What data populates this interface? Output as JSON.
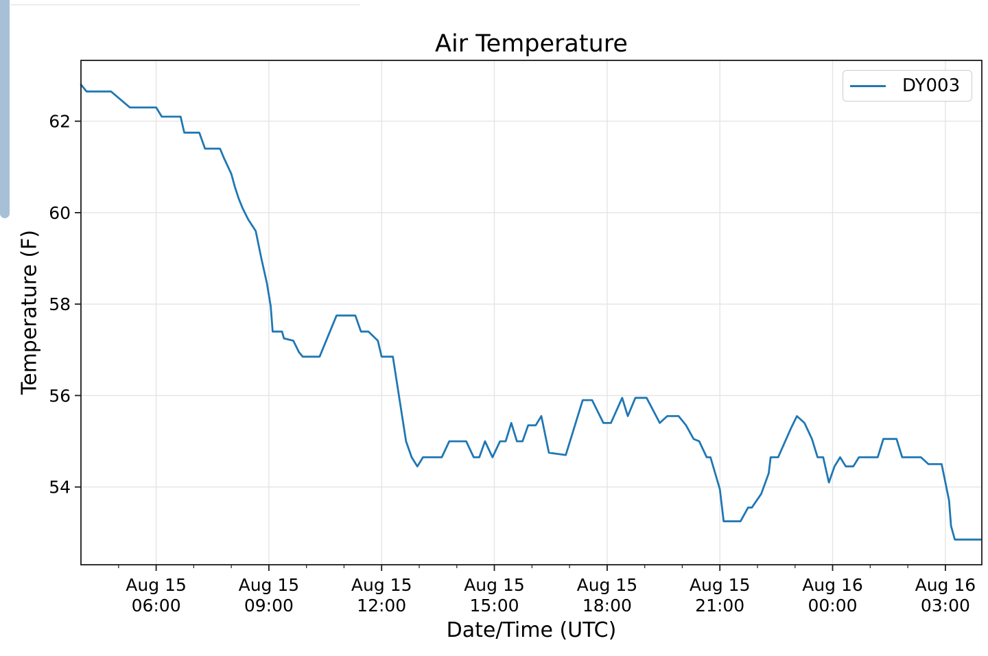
{
  "page": {
    "background": "#ffffff",
    "scrollbar_color": "#a7c0d8",
    "divider_color": "#ededed"
  },
  "chart_data": {
    "type": "line",
    "title": "Air Temperature",
    "xlabel": "Date/Time (UTC)",
    "ylabel": "Temperature (F)",
    "grid": true,
    "grid_color": "#e4e4e4",
    "line_color": "#1f77b4",
    "spine_color": "#1a1a1a",
    "legend_position": "upper right",
    "x_unit": "hours since Aug 15 00:00 UTC",
    "xlim": [
      4.0,
      27.97
    ],
    "ylim": [
      52.3,
      63.33
    ],
    "y_ticks": [
      54,
      56,
      58,
      60,
      62
    ],
    "x_major_ticks": [
      {
        "t": 6,
        "line1": "Aug 15",
        "line2": "06:00"
      },
      {
        "t": 9,
        "line1": "Aug 15",
        "line2": "09:00"
      },
      {
        "t": 12,
        "line1": "Aug 15",
        "line2": "12:00"
      },
      {
        "t": 15,
        "line1": "Aug 15",
        "line2": "15:00"
      },
      {
        "t": 18,
        "line1": "Aug 15",
        "line2": "18:00"
      },
      {
        "t": 21,
        "line1": "Aug 15",
        "line2": "21:00"
      },
      {
        "t": 24,
        "line1": "Aug 16",
        "line2": "00:00"
      },
      {
        "t": 27,
        "line1": "Aug 16",
        "line2": "03:00"
      }
    ],
    "x_minor_ticks": [
      5,
      7,
      8,
      10,
      11,
      13,
      14,
      16,
      17,
      19,
      20,
      22,
      23,
      25,
      26
    ],
    "series": [
      {
        "name": "DY003",
        "points": [
          [
            4.0,
            62.8
          ],
          [
            4.15,
            62.65
          ],
          [
            4.8,
            62.65
          ],
          [
            5.3,
            62.3
          ],
          [
            6.0,
            62.3
          ],
          [
            6.15,
            62.1
          ],
          [
            6.65,
            62.1
          ],
          [
            6.75,
            61.75
          ],
          [
            7.15,
            61.75
          ],
          [
            7.3,
            61.4
          ],
          [
            7.7,
            61.4
          ],
          [
            7.8,
            61.2
          ],
          [
            8.0,
            60.85
          ],
          [
            8.1,
            60.55
          ],
          [
            8.2,
            60.3
          ],
          [
            8.3,
            60.1
          ],
          [
            8.45,
            59.85
          ],
          [
            8.65,
            59.6
          ],
          [
            8.8,
            59.0
          ],
          [
            8.95,
            58.45
          ],
          [
            9.05,
            57.95
          ],
          [
            9.1,
            57.4
          ],
          [
            9.35,
            57.4
          ],
          [
            9.4,
            57.25
          ],
          [
            9.65,
            57.2
          ],
          [
            9.8,
            56.95
          ],
          [
            9.9,
            56.85
          ],
          [
            10.35,
            56.85
          ],
          [
            10.8,
            57.75
          ],
          [
            11.3,
            57.75
          ],
          [
            11.45,
            57.4
          ],
          [
            11.65,
            57.4
          ],
          [
            11.9,
            57.2
          ],
          [
            12.0,
            56.85
          ],
          [
            12.3,
            56.85
          ],
          [
            12.65,
            55.0
          ],
          [
            12.8,
            54.65
          ],
          [
            12.95,
            54.45
          ],
          [
            13.1,
            54.65
          ],
          [
            13.6,
            54.65
          ],
          [
            13.8,
            55.0
          ],
          [
            14.25,
            55.0
          ],
          [
            14.45,
            54.65
          ],
          [
            14.6,
            54.65
          ],
          [
            14.75,
            55.0
          ],
          [
            14.95,
            54.65
          ],
          [
            15.15,
            55.0
          ],
          [
            15.3,
            55.0
          ],
          [
            15.45,
            55.4
          ],
          [
            15.6,
            55.0
          ],
          [
            15.75,
            55.0
          ],
          [
            15.9,
            55.35
          ],
          [
            16.1,
            55.35
          ],
          [
            16.25,
            55.55
          ],
          [
            16.45,
            54.75
          ],
          [
            16.9,
            54.7
          ],
          [
            17.35,
            55.9
          ],
          [
            17.6,
            55.9
          ],
          [
            17.9,
            55.4
          ],
          [
            18.1,
            55.4
          ],
          [
            18.4,
            55.95
          ],
          [
            18.55,
            55.55
          ],
          [
            18.75,
            55.95
          ],
          [
            19.05,
            55.95
          ],
          [
            19.4,
            55.4
          ],
          [
            19.6,
            55.55
          ],
          [
            19.9,
            55.55
          ],
          [
            20.1,
            55.35
          ],
          [
            20.3,
            55.05
          ],
          [
            20.45,
            55.0
          ],
          [
            20.65,
            54.65
          ],
          [
            20.75,
            54.65
          ],
          [
            21.0,
            53.95
          ],
          [
            21.1,
            53.25
          ],
          [
            21.55,
            53.25
          ],
          [
            21.75,
            53.55
          ],
          [
            21.85,
            53.55
          ],
          [
            22.1,
            53.85
          ],
          [
            22.3,
            54.3
          ],
          [
            22.35,
            54.65
          ],
          [
            22.55,
            54.65
          ],
          [
            22.9,
            55.3
          ],
          [
            23.05,
            55.55
          ],
          [
            23.25,
            55.4
          ],
          [
            23.45,
            55.05
          ],
          [
            23.6,
            54.65
          ],
          [
            23.75,
            54.65
          ],
          [
            23.9,
            54.1
          ],
          [
            24.05,
            54.45
          ],
          [
            24.2,
            54.65
          ],
          [
            24.35,
            54.45
          ],
          [
            24.55,
            54.45
          ],
          [
            24.7,
            54.65
          ],
          [
            25.2,
            54.65
          ],
          [
            25.35,
            55.05
          ],
          [
            25.7,
            55.05
          ],
          [
            25.85,
            54.65
          ],
          [
            26.35,
            54.65
          ],
          [
            26.55,
            54.5
          ],
          [
            26.9,
            54.5
          ],
          [
            27.0,
            54.1
          ],
          [
            27.1,
            53.7
          ],
          [
            27.15,
            53.15
          ],
          [
            27.25,
            52.85
          ],
          [
            27.95,
            52.85
          ]
        ]
      }
    ]
  }
}
